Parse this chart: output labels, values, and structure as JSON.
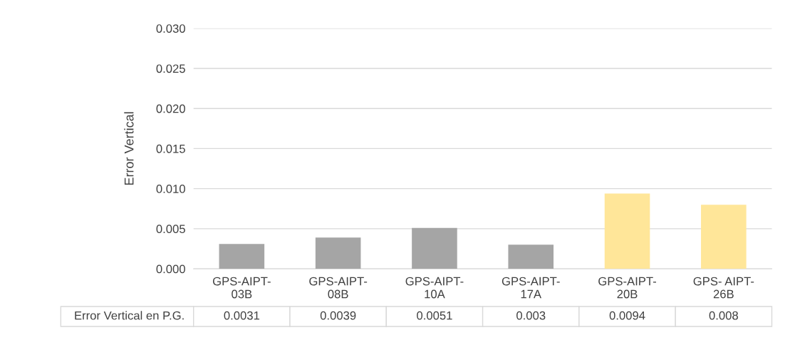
{
  "chart_data": {
    "type": "bar",
    "ylabel": "Error Vertical",
    "categories": [
      "GPS-AIPT-\n03B",
      "GPS-AIPT-\n08B",
      "GPS-AIPT-\n10A",
      "GPS-AIPT-\n17A",
      "GPS-AIPT-\n20B",
      "GPS- AIPT-\n26B"
    ],
    "series": [
      {
        "name": "Error Vertical en P.G.",
        "values": [
          0.0031,
          0.0039,
          0.0051,
          0.003,
          0.0094,
          0.008
        ],
        "colors": [
          "#a5a5a5",
          "#a5a5a5",
          "#a5a5a5",
          "#a5a5a5",
          "#ffe699",
          "#ffe699"
        ]
      }
    ],
    "ylim": [
      0,
      0.03
    ],
    "yticks": [
      {
        "value": 0,
        "label": "0.000"
      },
      {
        "value": 0.005,
        "label": "0.005"
      },
      {
        "value": 0.01,
        "label": "0.010"
      },
      {
        "value": 0.015,
        "label": "0.015"
      },
      {
        "value": 0.02,
        "label": "0.020"
      },
      {
        "value": 0.025,
        "label": "0.025"
      },
      {
        "value": 0.03,
        "label": "0.030"
      }
    ],
    "grid": "y",
    "data_labels": true
  }
}
